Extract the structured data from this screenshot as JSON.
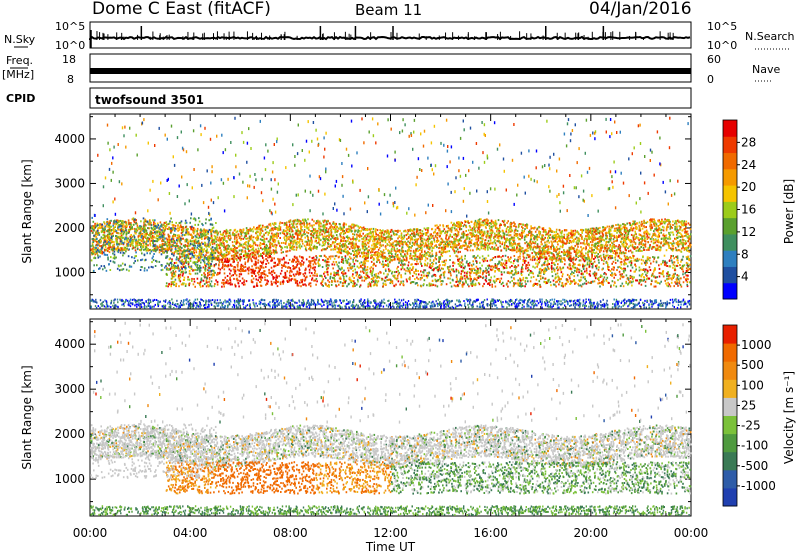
{
  "header": {
    "title_left": "Dome C East (fitACF)",
    "title_mid": "Beam 11",
    "title_right": "04/Jan/2016"
  },
  "panels": {
    "nsky": {
      "label": "N.Sky",
      "left_ticks": [
        "10^5",
        "10^0"
      ],
      "right_ticks": [
        "10^5",
        "10^0"
      ],
      "right_label": "N.Search"
    },
    "freq": {
      "label_top": "Freq.",
      "label_unit": "[MHz]",
      "left_ticks": [
        "18",
        "8"
      ],
      "right_ticks": [
        "60",
        "0"
      ],
      "right_label": "Nave"
    },
    "cpid": {
      "label": "CPID",
      "value": "twofsound 3501"
    }
  },
  "chart_data": [
    {
      "type": "heatmap",
      "name": "power",
      "ylabel": "Slant Range [km]",
      "xlabel": "Time UT",
      "y_ticks": [
        1000,
        2000,
        3000,
        4000
      ],
      "ylim": [
        180,
        4560
      ],
      "xlim": [
        0,
        24
      ],
      "x_ticks": [
        "00:00",
        "04:00",
        "08:00",
        "12:00",
        "16:00",
        "20:00",
        "00:00"
      ],
      "colorbar": {
        "label": "Power [dB]",
        "ticks": [
          "28",
          "24",
          "20",
          "16",
          "12",
          "8",
          "4"
        ],
        "colors": [
          "#0000ff",
          "#1f4fa0",
          "#2e7fbf",
          "#3f8f5f",
          "#5aa02e",
          "#9ccc1a",
          "#f5c400",
          "#f59a00",
          "#f06a00",
          "#ee3a00",
          "#e60000"
        ]
      }
    },
    {
      "type": "heatmap",
      "name": "velocity",
      "ylabel": "Slant Range [km]",
      "xlabel": "Time UT",
      "y_ticks": [
        1000,
        2000,
        3000,
        4000
      ],
      "ylim": [
        180,
        4560
      ],
      "xlim": [
        0,
        24
      ],
      "x_ticks": [
        "00:00",
        "04:00",
        "08:00",
        "12:00",
        "16:00",
        "20:00",
        "00:00"
      ],
      "colorbar": {
        "label": "Velocity [m s⁻¹]",
        "ticks": [
          "1000",
          "500",
          "100",
          "25",
          "-25",
          "-100",
          "-500",
          "-1000"
        ],
        "colors": [
          "#2040b0",
          "#2e5ca8",
          "#3a7a55",
          "#4f9a3f",
          "#7bc13a",
          "#c8c8c8",
          "#f0b020",
          "#f08a10",
          "#f06a00",
          "#e82000"
        ]
      }
    }
  ],
  "axis": {
    "xlabel": "Time UT",
    "x_ticks": [
      "00:00",
      "04:00",
      "08:00",
      "12:00",
      "16:00",
      "20:00",
      "00:00"
    ],
    "y_ticks": [
      "1000",
      "2000",
      "3000",
      "4000"
    ],
    "ylabel": "Slant Range [km]"
  }
}
